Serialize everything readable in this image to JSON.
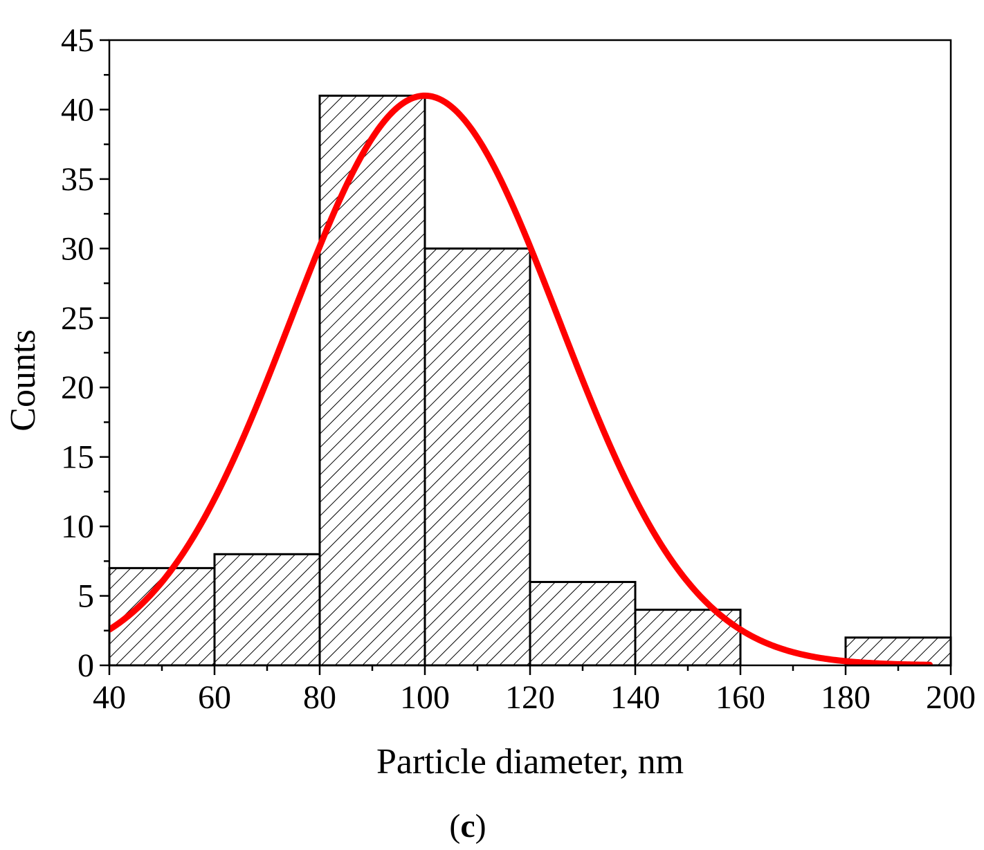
{
  "chart_data": {
    "type": "bar",
    "subtype": "histogram",
    "xlabel": "Particle diameter, nm",
    "ylabel": "Counts",
    "panel_label_parts": [
      "(",
      "c",
      ")"
    ],
    "xlim": [
      40,
      200
    ],
    "ylim": [
      0,
      45
    ],
    "xticks": [
      40,
      60,
      80,
      100,
      120,
      140,
      160,
      180,
      200
    ],
    "yticks": [
      0,
      5,
      10,
      15,
      20,
      25,
      30,
      35,
      40,
      45
    ],
    "bins": [
      {
        "start": 40,
        "end": 60,
        "count": 7
      },
      {
        "start": 60,
        "end": 80,
        "count": 8
      },
      {
        "start": 80,
        "end": 100,
        "count": 41
      },
      {
        "start": 100,
        "end": 120,
        "count": 30
      },
      {
        "start": 120,
        "end": 140,
        "count": 6
      },
      {
        "start": 140,
        "end": 160,
        "count": 4
      },
      {
        "start": 160,
        "end": 180,
        "count": 0
      },
      {
        "start": 180,
        "end": 200,
        "count": 2
      }
    ],
    "fit_curve": {
      "type": "gaussian",
      "amplitude": 41,
      "center": 100,
      "sigma": 25.5,
      "x_range": [
        40,
        196
      ],
      "color": "#ff0000"
    },
    "bar_fill": "hatched",
    "grid": false,
    "legend": false
  }
}
